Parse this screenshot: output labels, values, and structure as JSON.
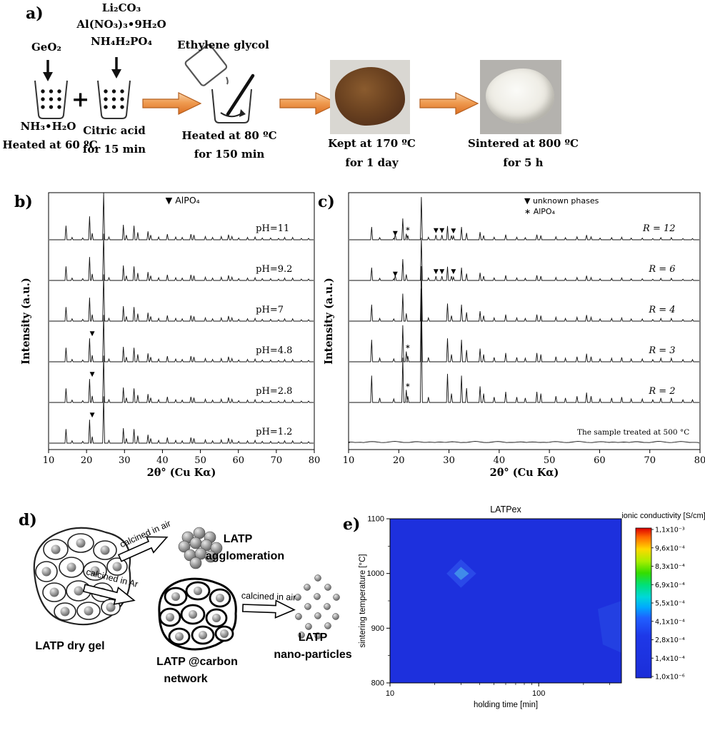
{
  "panel_labels": {
    "a": "a)",
    "b": "b)",
    "c": "c)",
    "d": "d)",
    "e": "e)"
  },
  "figure": {
    "panel_a": {
      "reagent_stack": [
        "Li₂CO₃",
        "Al(NO₃)₃•9H₂O",
        "NH₄H₂PO₄"
      ],
      "beaker1_reagent": "GeO₂",
      "beaker1_solution": "NH₃•H₂O",
      "beaker1_condition": "Heated at 60 ºC",
      "plus": "+",
      "beaker2_solution": "Citric acid",
      "beaker2_condition": "for 15 min",
      "pour_label": "Ethylene glycol",
      "mix_condition1": "Heated at 80 ºC",
      "mix_condition2": "for 150 min",
      "dry_condition1": "Kept at 170 ºC",
      "dry_condition2": "for 1 day",
      "sinter_condition1": "Sintered at 800 ºC",
      "sinter_condition2": "for 5 h"
    },
    "panel_d": {
      "dry_gel": "LATP dry gel",
      "arrow_air_1": "calcined in air",
      "agglomeration_1": "LATP",
      "agglomeration_2": "agglomeration",
      "arrow_ar": "calcined in Ar",
      "carbon_1": "LATP @carbon",
      "carbon_2": "network",
      "arrow_air_2": "calcined in air",
      "nano_1": "LATP",
      "nano_2": "nano-particles"
    }
  },
  "chart_data": [
    {
      "type": "line",
      "variant": "xrd",
      "panel": "b",
      "xlabel": "2θ° (Cu Kα)",
      "ylabel": "Intensity (a.u.)",
      "xlim": [
        10,
        80
      ],
      "xticks": [
        10,
        20,
        30,
        40,
        50,
        60,
        70,
        80
      ],
      "legend": [
        {
          "symbol": "▼",
          "label": "AlPO₄"
        }
      ],
      "peaks": [
        [
          14.6,
          0.3
        ],
        [
          16.2,
          0.05
        ],
        [
          19.0,
          0.04
        ],
        [
          20.8,
          0.5
        ],
        [
          21.5,
          0.14
        ],
        [
          24.5,
          1.0
        ],
        [
          25.9,
          0.06
        ],
        [
          29.7,
          0.32
        ],
        [
          30.5,
          0.1
        ],
        [
          32.5,
          0.3
        ],
        [
          33.5,
          0.16
        ],
        [
          36.2,
          0.18
        ],
        [
          36.9,
          0.1
        ],
        [
          39.0,
          0.06
        ],
        [
          41.3,
          0.12
        ],
        [
          43.5,
          0.06
        ],
        [
          45.2,
          0.05
        ],
        [
          47.5,
          0.12
        ],
        [
          48.3,
          0.1
        ],
        [
          51.3,
          0.07
        ],
        [
          53.2,
          0.05
        ],
        [
          55.5,
          0.07
        ],
        [
          57.4,
          0.11
        ],
        [
          58.3,
          0.07
        ],
        [
          60.1,
          0.04
        ],
        [
          62.4,
          0.05
        ],
        [
          64.4,
          0.06
        ],
        [
          66.3,
          0.04
        ],
        [
          68.5,
          0.04
        ],
        [
          70.6,
          0.03
        ],
        [
          72.2,
          0.05
        ],
        [
          74.3,
          0.05
        ],
        [
          76.6,
          0.03
        ],
        [
          78.5,
          0.03
        ]
      ],
      "series": [
        {
          "label": "pH=11",
          "scale": 1.15
        },
        {
          "label": "pH=9.2",
          "scale": 1.15
        },
        {
          "label": "pH=7",
          "scale": 1.15
        },
        {
          "label": "pH=4.8",
          "scale": 1.15,
          "markers": [
            {
              "sym": "▼",
              "x": 21.5
            }
          ]
        },
        {
          "label": "pH=2.8",
          "scale": 1.15,
          "markers": [
            {
              "sym": "▼",
              "x": 21.5
            }
          ]
        },
        {
          "label": "pH=1.2",
          "scale": 1.15,
          "markers": [
            {
              "sym": "▼",
              "x": 21.5
            }
          ]
        }
      ]
    },
    {
      "type": "line",
      "variant": "xrd",
      "panel": "c",
      "xlabel": "2θ° (Cu Kα)",
      "ylabel": "Intensity (a.u.)",
      "xlim": [
        10,
        80
      ],
      "xticks": [
        10,
        20,
        30,
        40,
        50,
        60,
        70,
        80
      ],
      "legend": [
        {
          "symbol": "▼",
          "label": "unknown phases"
        },
        {
          "symbol": "∗",
          "label": "AlPO₄"
        }
      ],
      "peaks": [
        [
          14.6,
          0.3
        ],
        [
          16.2,
          0.05
        ],
        [
          19.0,
          0.04
        ],
        [
          20.8,
          0.5
        ],
        [
          21.5,
          0.14
        ],
        [
          24.5,
          1.0
        ],
        [
          25.9,
          0.06
        ],
        [
          29.7,
          0.32
        ],
        [
          30.5,
          0.1
        ],
        [
          32.5,
          0.3
        ],
        [
          33.5,
          0.16
        ],
        [
          36.2,
          0.18
        ],
        [
          36.9,
          0.1
        ],
        [
          39.0,
          0.06
        ],
        [
          41.3,
          0.12
        ],
        [
          43.5,
          0.06
        ],
        [
          45.2,
          0.05
        ],
        [
          47.5,
          0.12
        ],
        [
          48.3,
          0.1
        ],
        [
          51.3,
          0.07
        ],
        [
          53.2,
          0.05
        ],
        [
          55.5,
          0.07
        ],
        [
          57.4,
          0.11
        ],
        [
          58.3,
          0.07
        ],
        [
          60.1,
          0.04
        ],
        [
          62.4,
          0.05
        ],
        [
          64.4,
          0.06
        ],
        [
          66.3,
          0.04
        ],
        [
          68.5,
          0.04
        ],
        [
          70.6,
          0.03
        ],
        [
          72.2,
          0.05
        ],
        [
          74.3,
          0.05
        ],
        [
          76.6,
          0.03
        ],
        [
          78.5,
          0.03
        ]
      ],
      "series": [
        {
          "label": "R = 12",
          "scale": 1.05,
          "extra": [
            [
              19.3,
              0.13
            ],
            [
              21.8,
              0.1
            ],
            [
              27.4,
              0.11
            ],
            [
              28.6,
              0.11
            ],
            [
              30.9,
              0.09
            ]
          ],
          "markers": [
            {
              "sym": "▼",
              "x": 19.3
            },
            {
              "sym": "∗",
              "x": 21.8
            },
            {
              "sym": "▼",
              "x": 27.4
            },
            {
              "sym": "▼",
              "x": 28.6
            },
            {
              "sym": "▼",
              "x": 30.9
            }
          ]
        },
        {
          "label": "R = 6",
          "scale": 1.05,
          "extra": [
            [
              19.3,
              0.12
            ],
            [
              27.4,
              0.1
            ],
            [
              28.6,
              0.1
            ],
            [
              30.9,
              0.08
            ]
          ],
          "markers": [
            {
              "sym": "▼",
              "x": 19.3
            },
            {
              "sym": "▼",
              "x": 27.4
            },
            {
              "sym": "▼",
              "x": 28.6
            },
            {
              "sym": "▼",
              "x": 30.9
            }
          ]
        },
        {
          "label": "R = 4",
          "scale": 1.35
        },
        {
          "label": "R = 3",
          "scale": 1.8,
          "extra": [
            [
              21.8,
              0.08
            ]
          ],
          "markers": [
            {
              "sym": "∗",
              "x": 21.8
            }
          ]
        },
        {
          "label": "R = 2",
          "scale": 2.2,
          "extra": [
            [
              21.8,
              0.07
            ]
          ],
          "markers": [
            {
              "sym": "∗",
              "x": 21.8
            }
          ]
        },
        {
          "label": "The sample treated at 500 °C",
          "flat": true
        }
      ]
    },
    {
      "type": "heatmap",
      "panel": "e",
      "title": "LATPex",
      "xlabel": "holding time [min]",
      "ylabel": "sintering temperature [°C]",
      "xscale": "log",
      "xlim": [
        10,
        360
      ],
      "ylim": [
        800,
        1100
      ],
      "xticks": [
        10,
        100
      ],
      "xminor": [
        20,
        30,
        40,
        50,
        60,
        70,
        80,
        90,
        200,
        300
      ],
      "yticks": [
        800,
        900,
        1000,
        1100
      ],
      "yminor": [
        850,
        950,
        1050
      ],
      "field_color": "#1d30dd",
      "features": [
        {
          "points": [
            [
              24,
              1000
            ],
            [
              30,
              1026
            ],
            [
              38,
              1000
            ],
            [
              30,
              974
            ]
          ],
          "color": "#2a49e8"
        },
        {
          "points": [
            [
              27,
              1000
            ],
            [
              30,
              1012
            ],
            [
              34,
              1000
            ],
            [
              30,
              988
            ]
          ],
          "color": "#3f8bea"
        },
        {
          "points": [
            [
              250,
              935
            ],
            [
              360,
              950
            ],
            [
              360,
              855
            ],
            [
              270,
              870
            ]
          ],
          "color": "#2340e2"
        }
      ],
      "colorbar": {
        "label": "ionic conductivity [S/cm]",
        "ticks": [
          "1,1x10⁻³",
          "9,6x10⁻⁴",
          "8,3x10⁻⁴",
          "6,9x10⁻⁴",
          "5,5x10⁻⁴",
          "4,1x10⁻⁴",
          "2,8x10⁻⁴",
          "1,4x10⁻⁴",
          "1,0x10⁻⁶"
        ],
        "colors": [
          [
            0,
            "#dd0000"
          ],
          [
            0.06,
            "#ff6a00"
          ],
          [
            0.14,
            "#ffd800"
          ],
          [
            0.22,
            "#aaee00"
          ],
          [
            0.3,
            "#33dd00"
          ],
          [
            0.38,
            "#00e07a"
          ],
          [
            0.46,
            "#00d8d8"
          ],
          [
            0.53,
            "#00a8ff"
          ],
          [
            0.6,
            "#2060ff"
          ],
          [
            0.72,
            "#1e38e8"
          ],
          [
            1,
            "#1c2ed8"
          ]
        ]
      }
    }
  ]
}
